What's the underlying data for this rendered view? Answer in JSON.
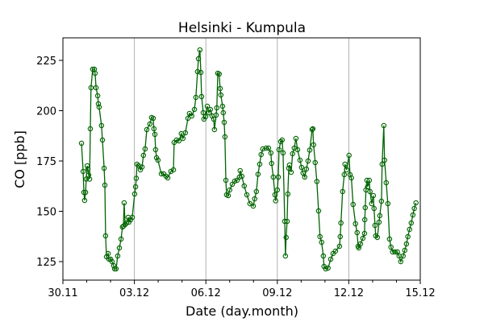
{
  "chart_data": {
    "type": "line",
    "title": "Helsinki - Kumpula",
    "xlabel": "Date (day.month)",
    "ylabel": "CO [ppb]",
    "x_units": "days since 30.11",
    "xlim": [
      0,
      15
    ],
    "ylim": [
      115.8,
      236.2
    ],
    "xticks": [
      0,
      3,
      6,
      9,
      12,
      15
    ],
    "xtick_labels": [
      "30.11",
      "03.12",
      "06.12",
      "09.12",
      "12.12",
      "15.12"
    ],
    "yticks": [
      125,
      150,
      175,
      200,
      225
    ],
    "ytick_labels": [
      "125",
      "150",
      "175",
      "200",
      "225"
    ],
    "grid": "vertical at major x ticks",
    "line_color": "#006400",
    "grid_color": "#b0b0b0",
    "series": [
      {
        "name": "CO",
        "marker": "open-circle",
        "x": [
          0.78,
          0.85,
          0.88,
          0.91,
          0.95,
          0.98,
          1.02,
          1.05,
          1.08,
          1.12,
          1.15,
          1.18,
          1.25,
          1.32,
          1.35,
          1.39,
          1.46,
          1.49,
          1.52,
          1.62,
          1.66,
          1.73,
          1.76,
          1.79,
          1.83,
          1.9,
          1.93,
          2.0,
          2.06,
          2.13,
          2.17,
          2.23,
          2.3,
          2.37,
          2.44,
          2.5,
          2.54,
          2.57,
          2.61,
          2.67,
          2.74,
          2.77,
          2.84,
          2.91,
          3.01,
          3.05,
          3.08,
          3.11,
          3.18,
          3.25,
          3.32,
          3.38,
          3.45,
          3.52,
          3.65,
          3.72,
          3.79,
          3.82,
          3.86,
          3.89,
          3.93,
          3.99,
          4.13,
          4.23,
          4.33,
          4.4,
          4.53,
          4.64,
          4.67,
          4.77,
          4.87,
          4.97,
          5.04,
          5.14,
          5.25,
          5.31,
          5.41,
          5.52,
          5.58,
          5.65,
          5.69,
          5.75,
          5.79,
          5.82,
          5.89,
          5.92,
          5.99,
          6.06,
          6.13,
          6.19,
          6.26,
          6.33,
          6.36,
          6.43,
          6.46,
          6.5,
          6.56,
          6.6,
          6.63,
          6.7,
          6.73,
          6.77,
          6.8,
          6.84,
          6.87,
          6.94,
          7.0,
          7.11,
          7.21,
          7.31,
          7.41,
          7.44,
          7.51,
          7.61,
          7.72,
          7.85,
          7.99,
          8.05,
          8.12,
          8.19,
          8.26,
          8.32,
          8.39,
          8.53,
          8.63,
          8.73,
          8.76,
          8.83,
          8.9,
          8.93,
          9.0,
          9.04,
          9.07,
          9.14,
          9.2,
          9.24,
          9.31,
          9.34,
          9.37,
          9.41,
          9.44,
          9.48,
          9.51,
          9.58,
          9.64,
          9.71,
          9.78,
          9.85,
          9.95,
          10.02,
          10.08,
          10.15,
          10.22,
          10.29,
          10.36,
          10.46,
          10.49,
          10.52,
          10.59,
          10.66,
          10.73,
          10.79,
          10.86,
          10.93,
          10.96,
          11.03,
          11.13,
          11.24,
          11.34,
          11.44,
          11.61,
          11.64,
          11.67,
          11.74,
          11.81,
          11.84,
          11.91,
          12.01,
          12.05,
          12.11,
          12.18,
          12.28,
          12.35,
          12.39,
          12.42,
          12.49,
          12.59,
          12.66,
          12.67,
          12.69,
          12.72,
          12.76,
          12.79,
          12.86,
          12.89,
          12.96,
          13.03,
          13.06,
          13.1,
          13.13,
          13.2,
          13.27,
          13.3,
          13.37,
          13.4,
          13.47,
          13.5,
          13.57,
          13.64,
          13.71,
          13.77,
          13.84,
          13.94,
          14.04,
          14.11,
          14.18,
          14.28,
          14.35,
          14.42,
          14.48,
          14.55,
          14.62,
          14.69,
          14.75,
          14.82
        ],
        "y": [
          183.8,
          169.8,
          159.4,
          155.4,
          159.4,
          166,
          172.6,
          171,
          168,
          166,
          191,
          211.4,
          220.6,
          220.6,
          218.6,
          211.4,
          207.4,
          203.4,
          201.8,
          192.6,
          185.4,
          171.4,
          163,
          137.8,
          127.4,
          129,
          126.2,
          126.2,
          125,
          123,
          121.4,
          121.4,
          127.8,
          131.8,
          136.2,
          142.2,
          142.6,
          154.2,
          143.4,
          144.2,
          147,
          144.6,
          145.8,
          147,
          158.6,
          162.2,
          166.4,
          173.4,
          172.6,
          170.6,
          172,
          177.8,
          181,
          190.6,
          193.4,
          196.6,
          196.2,
          191,
          188.2,
          180.6,
          176.6,
          175.4,
          168.6,
          168.6,
          167.4,
          166.6,
          169.8,
          170.6,
          184.2,
          185.4,
          185,
          188.6,
          186.2,
          189,
          196.2,
          198.6,
          197.4,
          200.6,
          206.6,
          219.4,
          225.8,
          230.2,
          219,
          207,
          199,
          195.8,
          197,
          202.2,
          199,
          200.6,
          197.4,
          195.8,
          190.6,
          197.8,
          201.4,
          218.6,
          218.2,
          211,
          207.8,
          202.2,
          199,
          194.2,
          187,
          165.4,
          158.2,
          157.8,
          160.6,
          163.4,
          165,
          165.4,
          167,
          170.2,
          167.4,
          162.6,
          158.2,
          153.8,
          152.6,
          156.2,
          159.8,
          168.4,
          173.4,
          178.2,
          181,
          181.4,
          181.4,
          179,
          173.8,
          167,
          158.2,
          155.2,
          160.6,
          167,
          180.6,
          184.6,
          185.4,
          179,
          145,
          127.8,
          137,
          145,
          158.6,
          171.4,
          173,
          169.4,
          178.6,
          181.4,
          186.2,
          180.6,
          175.4,
          171.8,
          169,
          167,
          171,
          175,
          180.4,
          190.6,
          191,
          183,
          174.2,
          164.8,
          150.2,
          137.4,
          134.6,
          127.8,
          122.6,
          121.4,
          121.8,
          126.2,
          129,
          130.2,
          132.6,
          137.4,
          144.2,
          159.8,
          168.2,
          173.4,
          170.6,
          177.8,
          168.2,
          166.6,
          153.4,
          143.8,
          139.4,
          132.6,
          131.8,
          133.8,
          136.6,
          139,
          145.8,
          151.8,
          160.6,
          165.4,
          162.2,
          165.4,
          159.8,
          153.8,
          157.8,
          151.4,
          143,
          137.8,
          137,
          144.6,
          147.8,
          155,
          173.4,
          192.6,
          175.4,
          164.2,
          153.8,
          136.2,
          132.2,
          129.8,
          129.8,
          129.8,
          127.8,
          125,
          127.8,
          130.6,
          133.8,
          137.4,
          141,
          144.2,
          148.2,
          151.4,
          154.2
        ]
      }
    ]
  }
}
